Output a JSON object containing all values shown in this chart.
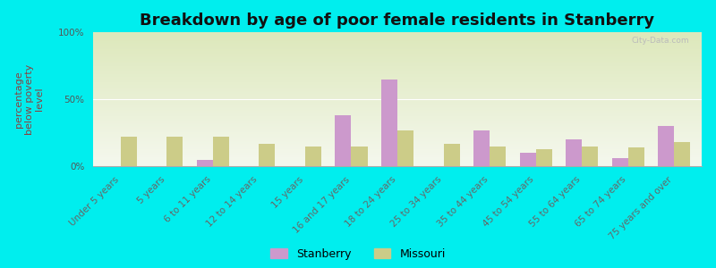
{
  "title": "Breakdown by age of poor female residents in Stanberry",
  "ylabel": "percentage\nbelow poverty\nlevel",
  "categories": [
    "Under 5 years",
    "5 years",
    "6 to 11 years",
    "12 to 14 years",
    "15 years",
    "16 and 17 years",
    "18 to 24 years",
    "25 to 34 years",
    "35 to 44 years",
    "45 to 54 years",
    "55 to 64 years",
    "65 to 74 years",
    "75 years and over"
  ],
  "stanberry_values": [
    0,
    0,
    5,
    0,
    0,
    38,
    65,
    0,
    27,
    10,
    20,
    6,
    30
  ],
  "missouri_values": [
    22,
    22,
    22,
    17,
    15,
    15,
    27,
    17,
    15,
    13,
    15,
    14,
    18
  ],
  "stanberry_color": "#cc99cc",
  "missouri_color": "#cccc88",
  "background_top": "#dde8bb",
  "background_bottom": "#f5f8ee",
  "outer_background": "#00eeee",
  "ylim": [
    0,
    100
  ],
  "yticks": [
    0,
    50,
    100
  ],
  "ytick_labels": [
    "0%",
    "50%",
    "100%"
  ],
  "bar_width": 0.35,
  "title_fontsize": 13,
  "tick_fontsize": 7.5,
  "ylabel_fontsize": 8,
  "legend_fontsize": 9
}
